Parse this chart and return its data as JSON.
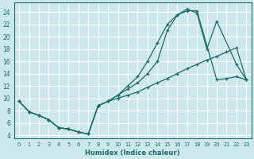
{
  "xlabel": "Humidex (Indice chaleur)",
  "background_color": "#cce8ec",
  "grid_color": "#ffffff",
  "line_color": "#1e6b6b",
  "xlim": [
    -0.5,
    23.5
  ],
  "ylim": [
    3.5,
    25.5
  ],
  "xticks": [
    0,
    1,
    2,
    3,
    4,
    5,
    6,
    7,
    8,
    9,
    10,
    11,
    12,
    13,
    14,
    15,
    16,
    17,
    18,
    19,
    20,
    21,
    22,
    23
  ],
  "yticks": [
    4,
    6,
    8,
    10,
    12,
    14,
    16,
    18,
    20,
    22,
    24
  ],
  "line1_x": [
    0,
    1,
    2,
    3,
    4,
    5,
    6,
    7,
    8,
    9,
    10,
    11,
    12,
    13,
    14,
    15,
    16,
    17,
    18,
    20,
    21,
    22,
    23
  ],
  "line1_y": [
    9.5,
    7.8,
    7.2,
    6.5,
    5.2,
    5.0,
    4.5,
    4.2,
    8.8,
    9.5,
    10.5,
    12.0,
    13.5,
    16.0,
    19.0,
    22.0,
    23.5,
    24.2,
    24.2,
    13.0,
    13.2,
    13.5,
    13.0
  ],
  "line2_x": [
    0,
    1,
    2,
    3,
    4,
    5,
    6,
    7,
    8,
    9,
    10,
    11,
    12,
    13,
    14,
    15,
    16,
    17,
    18,
    19,
    20,
    22,
    23
  ],
  "line2_y": [
    9.5,
    7.8,
    7.2,
    6.5,
    5.2,
    5.0,
    4.5,
    4.2,
    8.8,
    9.5,
    10.5,
    11.5,
    12.5,
    14.0,
    16.0,
    21.0,
    23.5,
    24.5,
    23.8,
    18.0,
    22.5,
    15.5,
    13.0
  ],
  "line3_x": [
    0,
    1,
    2,
    3,
    4,
    5,
    6,
    7,
    8,
    9,
    10,
    11,
    12,
    13,
    14,
    15,
    16,
    17,
    18,
    19,
    20,
    21,
    22,
    23
  ],
  "line3_y": [
    9.5,
    7.8,
    7.2,
    6.5,
    5.2,
    5.0,
    4.5,
    4.2,
    8.8,
    9.5,
    10.0,
    10.5,
    11.0,
    11.8,
    12.5,
    13.2,
    14.0,
    14.8,
    15.5,
    16.2,
    16.8,
    17.5,
    18.2,
    13.0
  ]
}
